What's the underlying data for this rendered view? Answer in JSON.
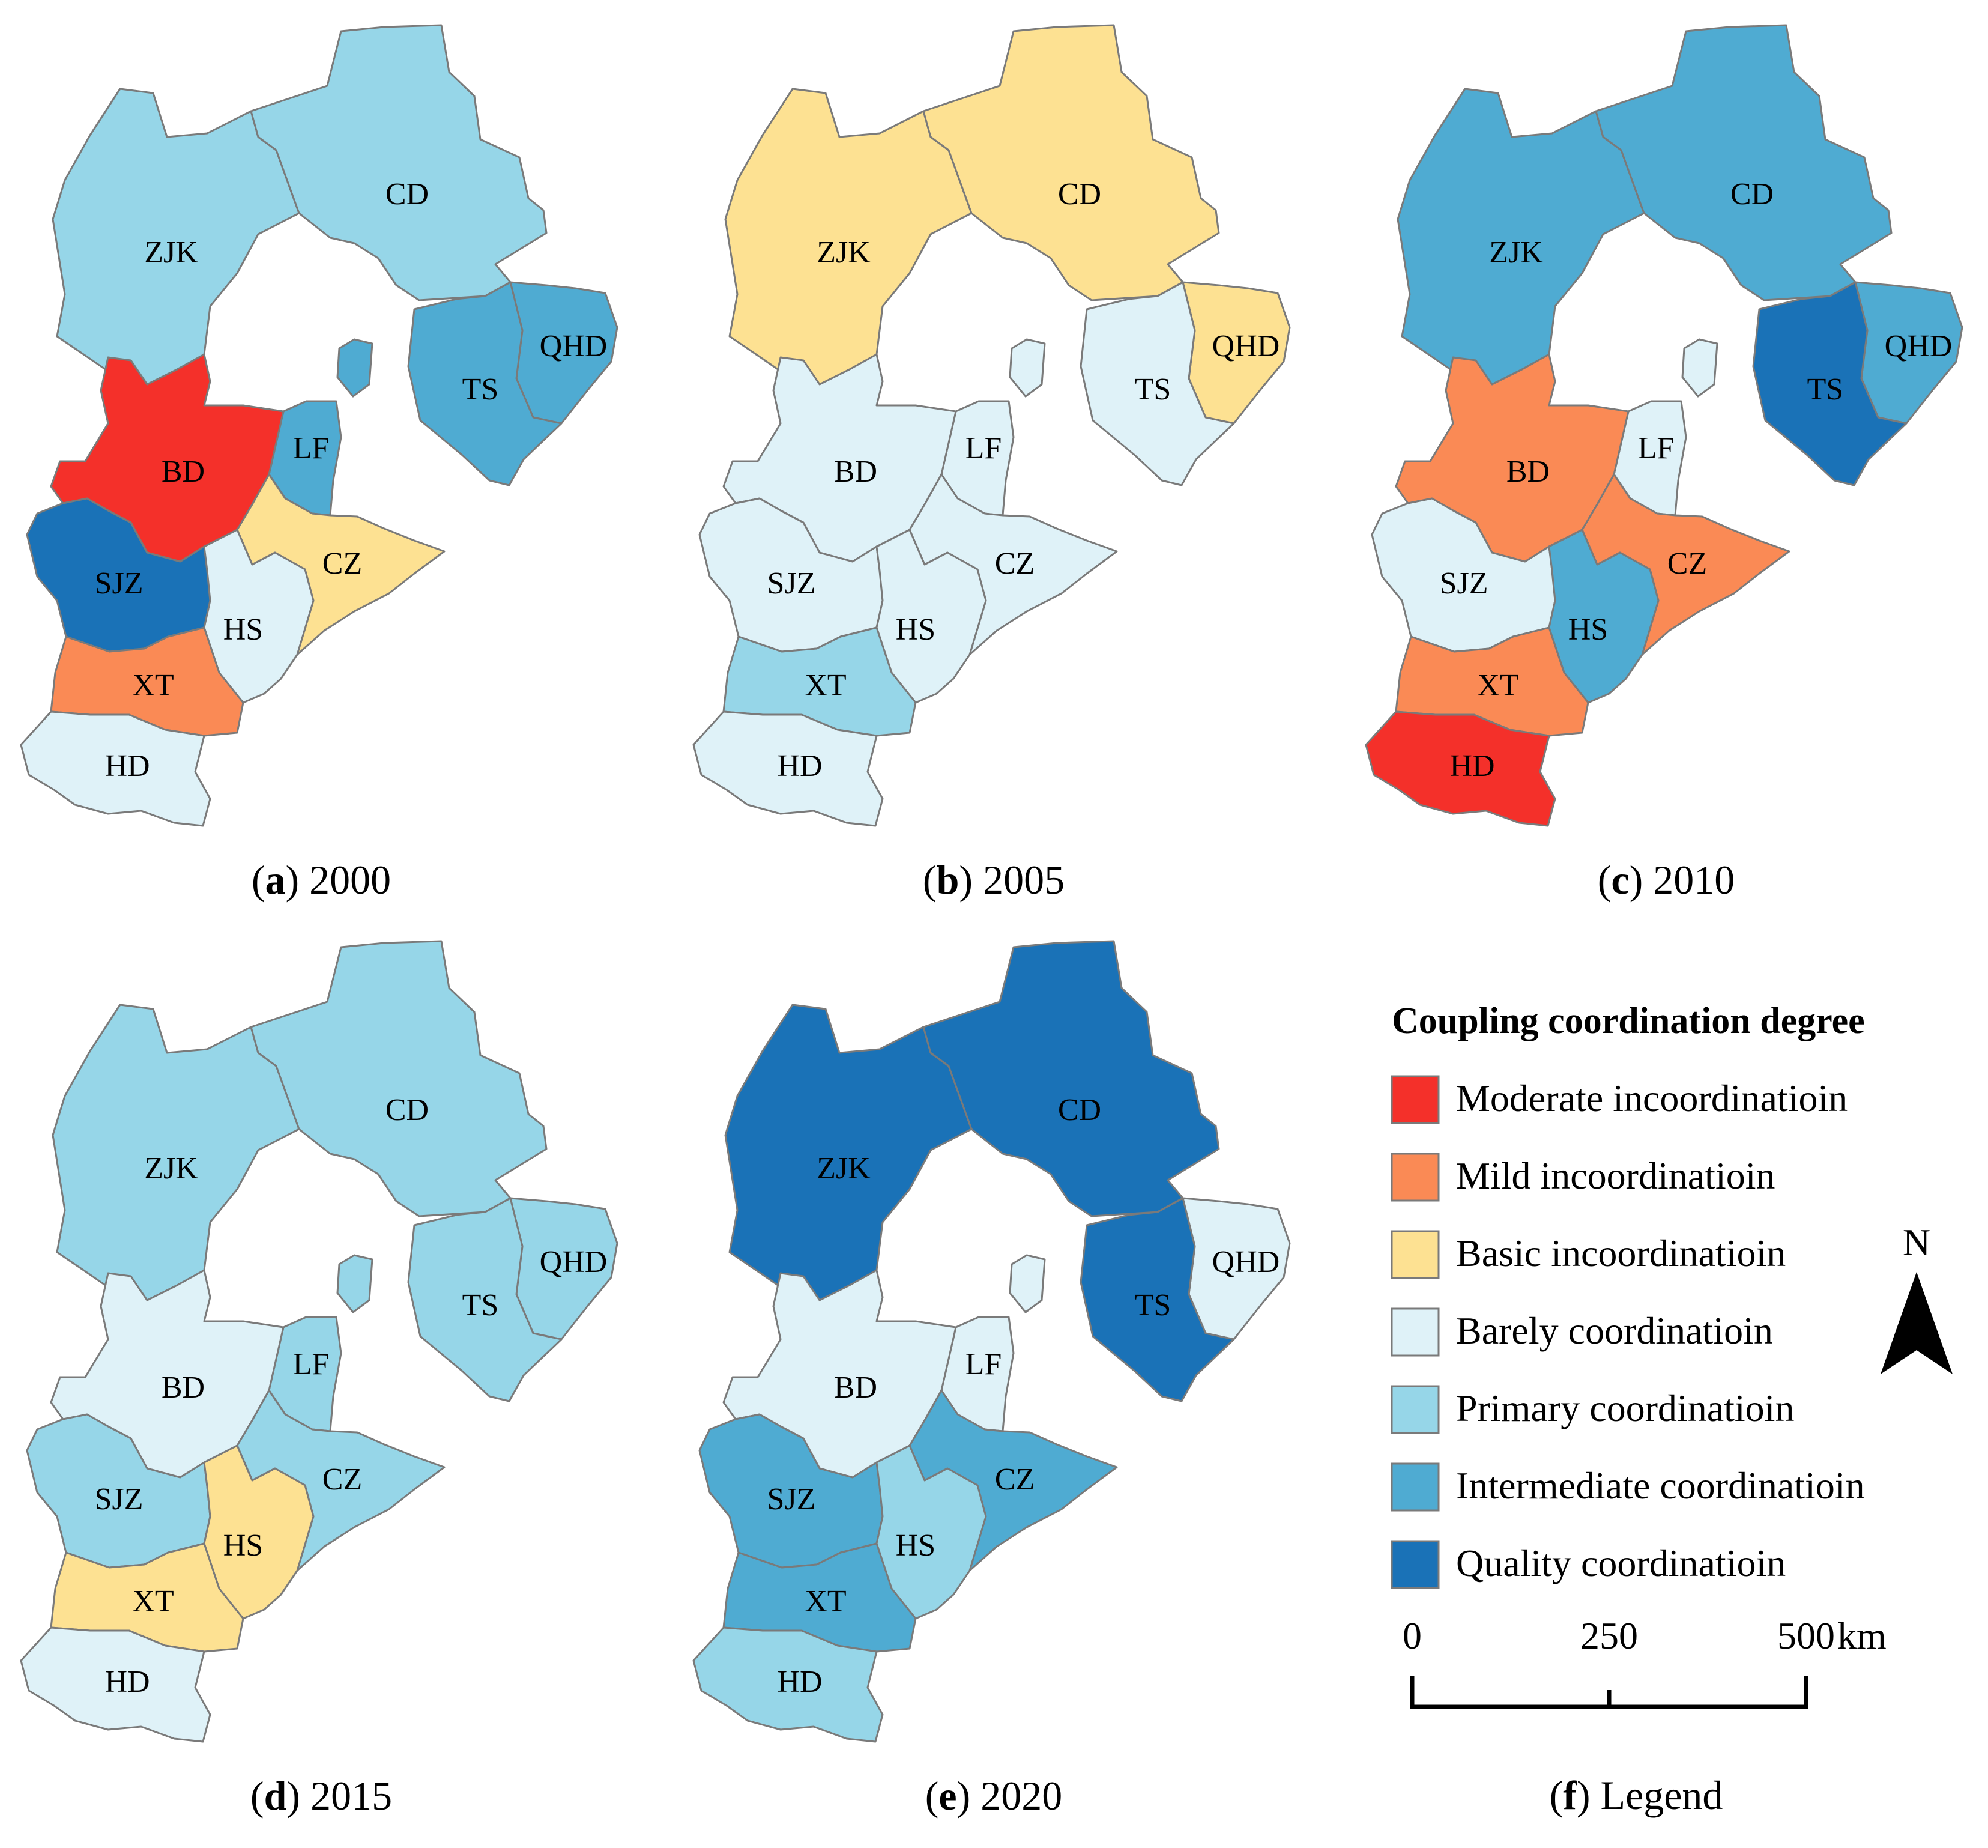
{
  "legend": {
    "title": "Coupling coordination degree",
    "caption_letter": "f",
    "caption_text": "Legend",
    "classes": [
      {
        "key": "moderate_incoord",
        "label": "Moderate incoordinatioin",
        "color": "#f4302a"
      },
      {
        "key": "mild_incoord",
        "label": "Mild incoordinatioin",
        "color": "#fa8a55"
      },
      {
        "key": "basic_incoord",
        "label": "Basic incoordinatioin",
        "color": "#fde192"
      },
      {
        "key": "barely_coord",
        "label": "Barely coordinatioin",
        "color": "#dff2f8"
      },
      {
        "key": "primary_coord",
        "label": "Primary coordinatioin",
        "color": "#96d6e8"
      },
      {
        "key": "intermediate_coord",
        "label": "Intermediate coordinatioin",
        "color": "#4fabd2"
      },
      {
        "key": "quality_coord",
        "label": "Quality coordinatioin",
        "color": "#1a72b7"
      }
    ]
  },
  "north_arrow": {
    "label": "N"
  },
  "scale_bar": {
    "ticks": [
      "0",
      "250",
      "500"
    ],
    "unit": "km"
  },
  "regions": [
    {
      "code": "ZJK",
      "label": "ZJK"
    },
    {
      "code": "CD",
      "label": "CD"
    },
    {
      "code": "QHD",
      "label": "QHD"
    },
    {
      "code": "TS",
      "label": "TS"
    },
    {
      "code": "LF",
      "label": "LF"
    },
    {
      "code": "BD",
      "label": "BD"
    },
    {
      "code": "CZ",
      "label": "CZ"
    },
    {
      "code": "SJZ",
      "label": "SJZ"
    },
    {
      "code": "HS",
      "label": "HS"
    },
    {
      "code": "XT",
      "label": "XT"
    },
    {
      "code": "HD",
      "label": "HD"
    }
  ],
  "maps": [
    {
      "letter": "a",
      "year": "2000",
      "classes": {
        "ZJK": "primary_coord",
        "CD": "primary_coord",
        "QHD": "intermediate_coord",
        "TS": "intermediate_coord",
        "LF": "intermediate_coord",
        "BD": "moderate_incoord",
        "CZ": "basic_incoord",
        "SJZ": "quality_coord",
        "HS": "barely_coord",
        "XT": "mild_incoord",
        "HD": "barely_coord",
        "BJX": "intermediate_coord"
      }
    },
    {
      "letter": "b",
      "year": "2005",
      "classes": {
        "ZJK": "basic_incoord",
        "CD": "basic_incoord",
        "QHD": "basic_incoord",
        "TS": "barely_coord",
        "LF": "barely_coord",
        "BD": "barely_coord",
        "CZ": "barely_coord",
        "SJZ": "barely_coord",
        "HS": "barely_coord",
        "XT": "primary_coord",
        "HD": "barely_coord",
        "BJX": "barely_coord"
      }
    },
    {
      "letter": "c",
      "year": "2010",
      "classes": {
        "ZJK": "intermediate_coord",
        "CD": "intermediate_coord",
        "QHD": "intermediate_coord",
        "TS": "quality_coord",
        "LF": "barely_coord",
        "BD": "mild_incoord",
        "CZ": "mild_incoord",
        "SJZ": "barely_coord",
        "HS": "intermediate_coord",
        "XT": "mild_incoord",
        "HD": "moderate_incoord",
        "BJX": "barely_coord"
      }
    },
    {
      "letter": "d",
      "year": "2015",
      "classes": {
        "ZJK": "primary_coord",
        "CD": "primary_coord",
        "QHD": "primary_coord",
        "TS": "primary_coord",
        "LF": "primary_coord",
        "BD": "barely_coord",
        "CZ": "primary_coord",
        "SJZ": "primary_coord",
        "HS": "basic_incoord",
        "XT": "basic_incoord",
        "HD": "barely_coord",
        "BJX": "primary_coord"
      }
    },
    {
      "letter": "e",
      "year": "2020",
      "classes": {
        "ZJK": "quality_coord",
        "CD": "quality_coord",
        "QHD": "barely_coord",
        "TS": "quality_coord",
        "LF": "barely_coord",
        "BD": "barely_coord",
        "CZ": "intermediate_coord",
        "SJZ": "intermediate_coord",
        "HS": "primary_coord",
        "XT": "intermediate_coord",
        "HD": "primary_coord",
        "BJX": "barely_coord"
      }
    }
  ]
}
